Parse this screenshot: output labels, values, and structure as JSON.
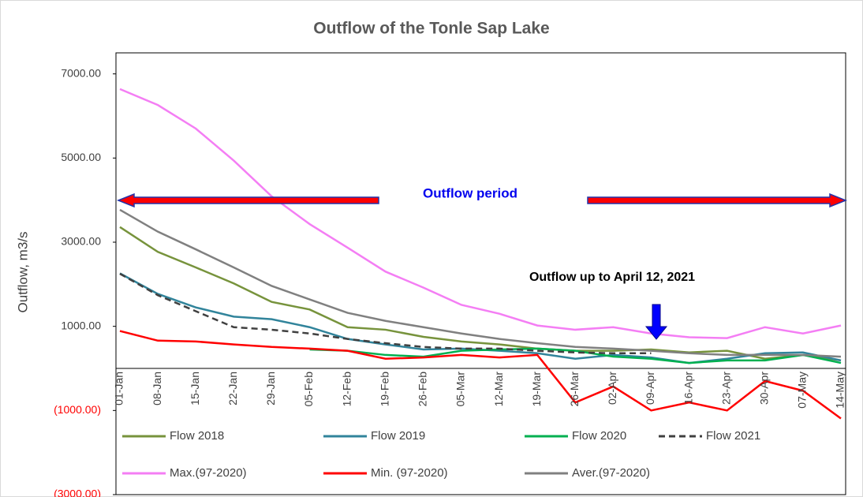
{
  "chart_data": {
    "type": "line",
    "title": "Outflow of the Tonle Sap Lake",
    "y_label": "Outflow, m3/s",
    "annotations": [
      "Outflow period",
      "Outflow up to April 12, 2021"
    ],
    "categories": [
      "01-Jan",
      "08-Jan",
      "15-Jan",
      "22-Jan",
      "29-Jan",
      "05-Feb",
      "12-Feb",
      "19-Feb",
      "26-Feb",
      "05-Mar",
      "12-Mar",
      "19-Mar",
      "26-Mar",
      "02-Apr",
      "09-Apr",
      "16-Apr",
      "23-Apr",
      "30-Apr",
      "07-May",
      "14-May"
    ],
    "series": [
      {
        "name": "Flow 2018",
        "color": "#77933c",
        "values": [
          3360,
          2770,
          2400,
          2020,
          1580,
          1400,
          980,
          920,
          750,
          640,
          570,
          470,
          420,
          420,
          450,
          380,
          420,
          230,
          320,
          190
        ]
      },
      {
        "name": "Flow 2019",
        "color": "#31849b",
        "values": [
          2260,
          1770,
          1450,
          1230,
          1170,
          980,
          700,
          570,
          450,
          470,
          420,
          360,
          230,
          320,
          260,
          130,
          230,
          360,
          380,
          190
        ]
      },
      {
        "name": "Flow 2020",
        "color": "#00b050",
        "values": [
          null,
          null,
          null,
          null,
          null,
          450,
          420,
          320,
          280,
          420,
          450,
          470,
          420,
          280,
          230,
          130,
          190,
          190,
          320,
          130
        ]
      },
      {
        "name": "Flow 2021",
        "color": "#404040",
        "dashed": true,
        "values": [
          2250,
          1740,
          1360,
          980,
          920,
          830,
          700,
          600,
          510,
          470,
          470,
          420,
          380,
          360,
          360,
          null,
          null,
          null,
          null,
          null
        ]
      },
      {
        "name": "Max.(97-2020)",
        "color": "#f47ef4",
        "values": [
          6640,
          6260,
          5700,
          4940,
          4090,
          3430,
          2870,
          2300,
          1920,
          1510,
          1300,
          1020,
          920,
          980,
          830,
          740,
          720,
          980,
          830,
          1020
        ]
      },
      {
        "name": "Min. (97-2020)",
        "color": "#ff0000",
        "values": [
          890,
          660,
          640,
          570,
          510,
          470,
          420,
          230,
          260,
          320,
          260,
          320,
          -810,
          -430,
          -1000,
          -810,
          -1000,
          -300,
          -530,
          -1190
        ]
      },
      {
        "name": "Aver.(97-2020)",
        "color": "#808080",
        "values": [
          3770,
          3250,
          2830,
          2400,
          1960,
          1640,
          1320,
          1130,
          980,
          830,
          700,
          600,
          510,
          470,
          420,
          360,
          320,
          320,
          320,
          280
        ]
      }
    ],
    "ylim": [
      -3000,
      7500
    ],
    "yticks": [
      {
        "value": 7000,
        "label": "7000.00"
      },
      {
        "value": 5000,
        "label": "5000.00"
      },
      {
        "value": 3000,
        "label": "3000.00"
      },
      {
        "value": 1000,
        "label": "1000.00"
      },
      {
        "value": -1000,
        "label": "(1000.00)"
      },
      {
        "value": -3000,
        "label": "(3000.00)"
      }
    ],
    "negative_tick_color": "#ff0000"
  }
}
